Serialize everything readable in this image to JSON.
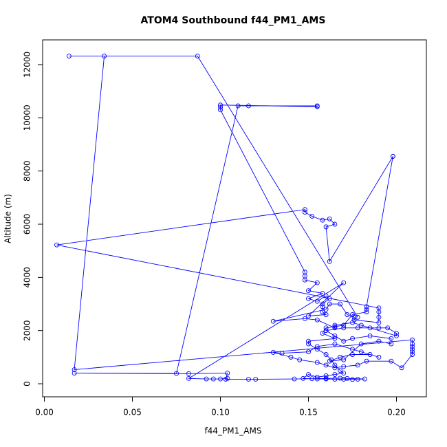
{
  "chart_data": {
    "type": "line",
    "title": "ATOM4 Southbound f44_PM1_AMS",
    "x_label": "f44_PM1_AMS",
    "y_label": "Altitude (m)",
    "color": "blue",
    "marker": "circle",
    "xlim": [
      -0.001,
      0.217
    ],
    "ylim": [
      -490,
      12930
    ],
    "xticks": [
      {
        "value": 0,
        "label": "0.00"
      },
      {
        "value": 0.05,
        "label": "0.05"
      },
      {
        "value": 0.1,
        "label": "0.10"
      },
      {
        "value": 0.15,
        "label": "0.15"
      },
      {
        "value": 0.2,
        "label": "0.20"
      }
    ],
    "yticks": [
      0,
      2000,
      4000,
      6000,
      8000,
      10000,
      12000
    ],
    "x": [
      0.178,
      0.087,
      0.014,
      0.034,
      0.017,
      0.209,
      0.209,
      0.209,
      0.209,
      0.209,
      0.209,
      0.203,
      0.197,
      0.183,
      0.178,
      0.17,
      0.165,
      0.16,
      0.155,
      0.145,
      0.14,
      0.13,
      0.135,
      0.15,
      0.155,
      0.165,
      0.175,
      0.18,
      0.19,
      0.185,
      0.175,
      0.168,
      0.162,
      0.17,
      0.18,
      0.19,
      0.197,
      0.197,
      0.185,
      0.175,
      0.17,
      0.165,
      0.16,
      0.17,
      0.178,
      0.185,
      0.19,
      0.195,
      0.2,
      0.2,
      0.18,
      0.175,
      0.165,
      0.165,
      0.155,
      0.148,
      0.13,
      0.16,
      0.162,
      0.168,
      0.172,
      0.176,
      0.176,
      0.19,
      0.19,
      0.19,
      0.19,
      0.007,
      0.148,
      0.148,
      0.152,
      0.158,
      0.162,
      0.165,
      0.16,
      0.162,
      0.198,
      0.198,
      0.183,
      0.183,
      0.183,
      0.175,
      0.17,
      0.165,
      0.16,
      0.158,
      0.165,
      0.15,
      0.15,
      0.155,
      0.16,
      0.163,
      0.165,
      0.168,
      0.17,
      0.165,
      0.16,
      0.155,
      0.15,
      0.147,
      0.155,
      0.16,
      0.165,
      0.17,
      0.175,
      0.178,
      0.182,
      0.172,
      0.168,
      0.16,
      0.152,
      0.142,
      0.12,
      0.116,
      0.103,
      0.104,
      0.082,
      0.017,
      0.075,
      0.11,
      0.116,
      0.155,
      0.155,
      0.1,
      0.1,
      0.1,
      0.148,
      0.148,
      0.148,
      0.155,
      0.15,
      0.158,
      0.15,
      0.155,
      0.16,
      0.162,
      0.158,
      0.158,
      0.158,
      0.16,
      0.15,
      0.17,
      0.082,
      0.092,
      0.096,
      0.1,
      0.104
    ],
    "values": [
      2500,
      12320,
      12320,
      12320,
      530,
      1650,
      1500,
      1400,
      1300,
      1200,
      1100,
      600,
      850,
      850,
      700,
      650,
      600,
      700,
      800,
      900,
      1000,
      1180,
      1150,
      1200,
      1400,
      1500,
      1300,
      1200,
      1000,
      1100,
      1100,
      1000,
      850,
      900,
      1500,
      1600,
      1500,
      1700,
      1800,
      1700,
      1600,
      1800,
      2000,
      2100,
      2100,
      2100,
      2100,
      2100,
      1900,
      1800,
      2200,
      2300,
      2200,
      2100,
      2400,
      2450,
      2350,
      2800,
      3000,
      3000,
      2600,
      2500,
      2400,
      2300,
      2500,
      2700,
      2850,
      5220,
      6550,
      6450,
      6300,
      6150,
      6200,
      6000,
      5900,
      4600,
      8550,
      8550,
      2900,
      2800,
      2700,
      2600,
      2200,
      2150,
      2100,
      1900,
      1700,
      1600,
      1500,
      1300,
      1100,
      900,
      700,
      500,
      400,
      350,
      300,
      250,
      350,
      200,
      180,
      180,
      170,
      170,
      160,
      170,
      180,
      200,
      210,
      200,
      190,
      180,
      170,
      170,
      170,
      400,
      380,
      400,
      390,
      10450,
      10450,
      10450,
      10420,
      10480,
      10400,
      10300,
      4200,
      4050,
      3900,
      3800,
      3500,
      3400,
      3200,
      3100,
      3300,
      3200,
      3000,
      2900,
      2700,
      2600,
      2550,
      3800,
      200,
      180,
      180,
      180,
      200
    ]
  }
}
